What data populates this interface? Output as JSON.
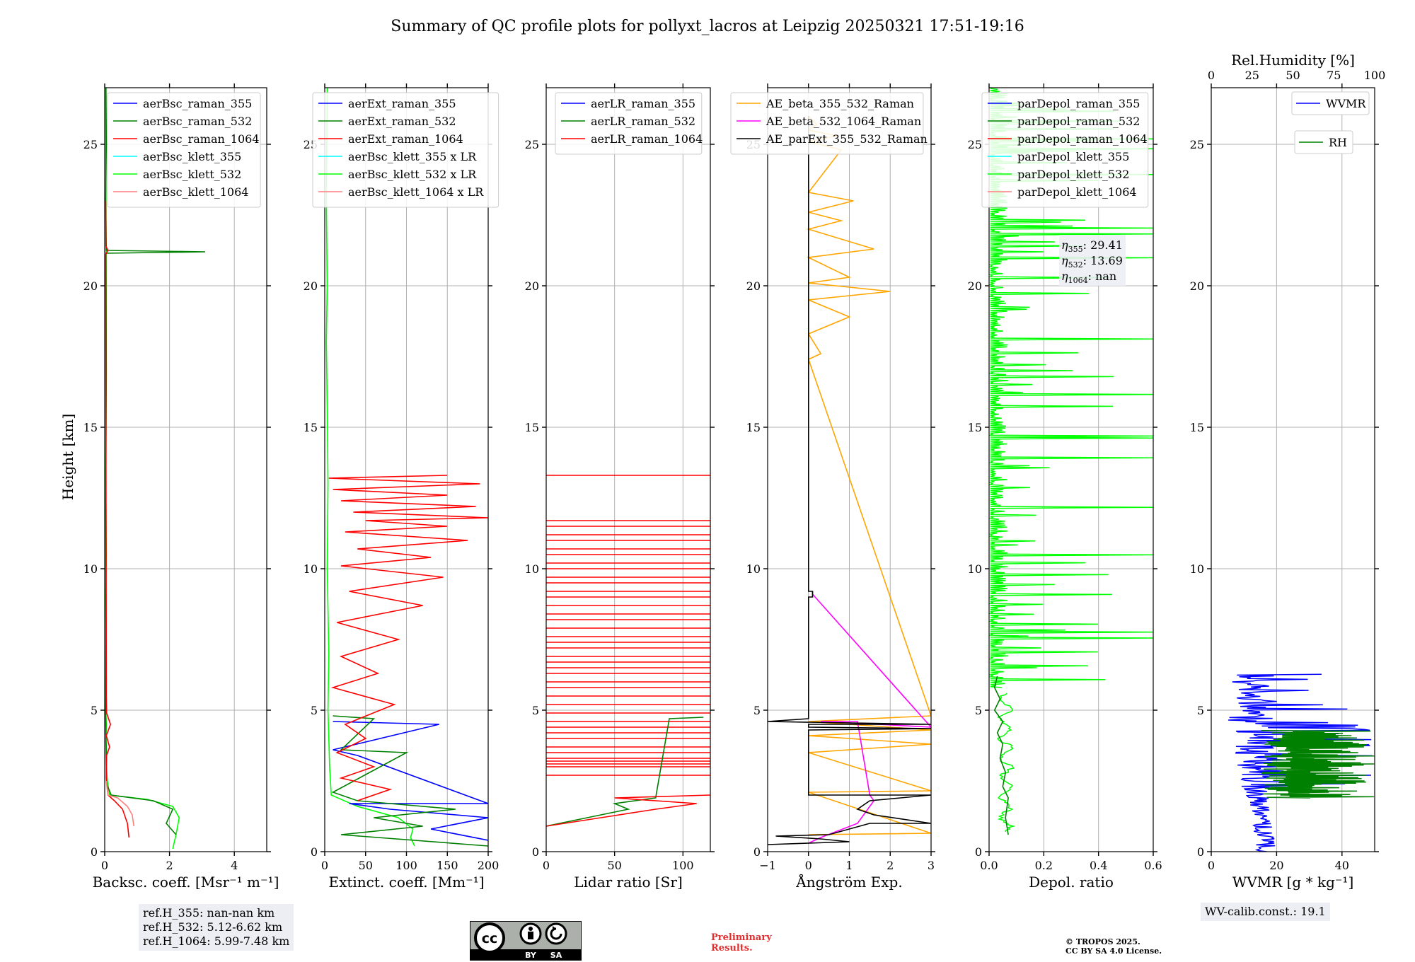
{
  "title": "Summary of QC profile plots for pollyxt_lacros at Leipzig 20250321 17:51-19:16",
  "y_axis": {
    "label": "Height [km]",
    "ticks": [
      0,
      5,
      10,
      15,
      20,
      25
    ],
    "range": [
      0,
      27
    ]
  },
  "colors": {
    "blue": "#0000ff",
    "green": "#008000",
    "red": "#ff0000",
    "cyan": "#00ffff",
    "lime": "#00ff00",
    "salmon": "#ff7f7f",
    "orange": "#ffa500",
    "magenta": "#ff00ff",
    "black": "#000000"
  },
  "chart_data": [
    {
      "type": "line",
      "id": "bsc",
      "xlabel": "Backsc. coeff. [Msr⁻¹ m⁻¹]",
      "xlim": [
        0,
        5
      ],
      "xticks": [
        0,
        2,
        4
      ],
      "legend": [
        "aerBsc_raman_355",
        "aerBsc_raman_532",
        "aerBsc_raman_1064",
        "aerBsc_klett_355",
        "aerBsc_klett_532",
        "aerBsc_klett_1064"
      ],
      "legend_colors": [
        "blue",
        "green",
        "red",
        "cyan",
        "lime",
        "salmon"
      ],
      "series": [
        {
          "name": "aerBsc_klett_532",
          "color": "lime",
          "x": [
            2.1,
            2.2,
            2.3,
            2.1,
            1.3,
            0.15,
            0.08,
            0.05,
            0.06,
            0.04,
            0.05,
            0.03,
            0.05,
            0.04,
            0.03,
            0.05,
            0.04,
            0.03,
            0.04,
            0.05,
            0.03
          ],
          "y": [
            0.1,
            0.6,
            1.2,
            1.6,
            1.85,
            2.0,
            2.5,
            3.0,
            3.5,
            4.0,
            4.5,
            5.0,
            6.0,
            7.5,
            9.0,
            10.5,
            12.0,
            13.5,
            15.0,
            18.0,
            27.0
          ]
        },
        {
          "name": "aerBsc_raman_532",
          "color": "green",
          "x": [
            2.2,
            1.9,
            2.1,
            1.5,
            0.2,
            0.06,
            0.05,
            0.04,
            0.03,
            0.04,
            0.03,
            0.05,
            0.04,
            3.1,
            0.05,
            0.03,
            0.05,
            0.04
          ],
          "y": [
            0.6,
            1.0,
            1.5,
            1.8,
            2.0,
            2.4,
            3.0,
            4.0,
            5.0,
            8.0,
            12.0,
            17.0,
            21.15,
            21.2,
            21.25,
            23.0,
            25.0,
            27.0
          ]
        },
        {
          "name": "aerBsc_raman_1064",
          "color": "red",
          "x": [
            0.75,
            0.7,
            0.55,
            0.3,
            0.1,
            0.05,
            0.06,
            0.15,
            0.05,
            0.18,
            0.06,
            0.05,
            0.03,
            0.1,
            0.04,
            0.03
          ],
          "y": [
            0.5,
            1.0,
            1.5,
            1.8,
            2.0,
            2.6,
            3.4,
            3.7,
            4.1,
            4.5,
            4.9,
            5.5,
            21.1,
            21.25,
            21.4,
            23.0
          ]
        },
        {
          "name": "aerBsc_klett_1064",
          "color": "salmon",
          "x": [
            0.9,
            0.85,
            0.7,
            0.4,
            0.1,
            0.05
          ],
          "y": [
            0.9,
            1.3,
            1.6,
            1.9,
            2.0,
            2.5
          ]
        }
      ],
      "annotations": [
        {
          "text": "ref.H_355: nan-nan km"
        },
        {
          "text": "ref.H_532: 5.12-6.62 km"
        },
        {
          "text": "ref.H_1064: 5.99-7.48 km"
        }
      ]
    },
    {
      "type": "line",
      "id": "ext",
      "xlabel": "Extinct. coeff. [Mm⁻¹]",
      "xlim": [
        0,
        200
      ],
      "xticks": [
        0,
        50,
        100,
        150,
        200
      ],
      "legend": [
        "aerExt_raman_355",
        "aerExt_raman_532",
        "aerExt_raman_1064",
        "aerBsc_klett_355 x LR",
        "aerBsc_klett_532 x LR",
        "aerBsc_klett_1064 x LR"
      ],
      "legend_colors": [
        "blue",
        "green",
        "red",
        "cyan",
        "lime",
        "salmon"
      ],
      "series": [
        {
          "name": "aerBsc_klett_532 x LR",
          "color": "lime",
          "x": [
            110,
            105,
            108,
            90,
            40,
            8,
            6,
            5,
            4,
            5,
            3,
            4,
            3,
            2,
            3,
            2,
            3
          ],
          "y": [
            0.2,
            0.5,
            0.8,
            1.2,
            1.6,
            2.0,
            3.0,
            4.0,
            5.0,
            7.0,
            10.0,
            13.0,
            15.8,
            18.0,
            20.0,
            23.0,
            27.0
          ]
        },
        {
          "name": "aerExt_raman_355",
          "color": "blue",
          "x": [
            200,
            130,
            200,
            80,
            30,
            200,
            40,
            10,
            140,
            10
          ],
          "y": [
            0.4,
            0.8,
            1.2,
            1.5,
            1.7,
            1.7,
            3.4,
            3.6,
            4.5,
            4.6
          ]
        },
        {
          "name": "aerExt_raman_532",
          "color": "green",
          "x": [
            200,
            20,
            120,
            60,
            160,
            40,
            10,
            100,
            20,
            60,
            10
          ],
          "y": [
            0.2,
            0.6,
            0.9,
            1.2,
            1.5,
            1.8,
            2.1,
            3.5,
            3.6,
            4.7,
            4.8
          ]
        },
        {
          "name": "aerExt_raman_1064",
          "color": "red",
          "x": [
            40,
            80,
            20,
            60,
            15,
            50,
            25,
            85,
            10,
            65,
            20,
            90,
            15,
            120,
            30,
            145,
            20,
            130,
            40,
            175,
            25,
            150,
            50,
            200,
            35,
            185,
            20,
            150,
            10,
            190,
            5,
            150
          ],
          "y": [
            1.8,
            2.2,
            2.6,
            3.0,
            3.5,
            4.0,
            4.5,
            5.2,
            5.8,
            6.3,
            6.9,
            7.5,
            8.1,
            8.7,
            9.2,
            9.7,
            10.1,
            10.4,
            10.7,
            11.0,
            11.3,
            11.5,
            11.7,
            11.8,
            12.0,
            12.2,
            12.4,
            12.6,
            12.8,
            13.0,
            13.2,
            13.3
          ]
        }
      ]
    },
    {
      "type": "line",
      "id": "lr",
      "xlabel": "Lidar ratio [Sr]",
      "xlim": [
        0,
        120
      ],
      "xticks": [
        0,
        50,
        100
      ],
      "legend": [
        "aerLR_raman_355",
        "aerLR_raman_532",
        "aerLR_raman_1064"
      ],
      "legend_colors": [
        "blue",
        "green",
        "red"
      ],
      "series": [
        {
          "name": "aerLR_raman_532",
          "color": "green",
          "x": [
            0,
            30,
            60,
            50,
            80,
            90,
            115
          ],
          "y": [
            0.9,
            1.2,
            1.5,
            1.7,
            1.9,
            4.7,
            4.75
          ]
        },
        {
          "name": "aerLR_raman_1064",
          "color": "red",
          "x": [
            0,
            40,
            80,
            110,
            50,
            120
          ],
          "y": [
            0.9,
            1.2,
            1.5,
            1.7,
            1.9,
            2.0
          ]
        }
      ],
      "hlines": {
        "color": "red",
        "y": [
          2.7,
          3.0,
          3.1,
          3.2,
          3.3,
          3.5,
          3.7,
          4.0,
          4.2,
          4.4,
          4.6,
          4.9,
          5.2,
          5.5,
          5.8,
          6.0,
          6.3,
          6.5,
          6.7,
          6.9,
          7.2,
          7.4,
          7.6,
          7.9,
          8.2,
          8.4,
          8.7,
          9.0,
          9.2,
          9.5,
          9.7,
          10.0,
          10.2,
          10.5,
          10.7,
          11.0,
          11.2,
          11.5,
          11.7,
          13.3
        ]
      }
    },
    {
      "type": "line",
      "id": "ae",
      "xlabel": "Ångström Exp.",
      "xlim": [
        -1,
        3
      ],
      "xticks": [
        -1,
        0,
        1,
        2,
        3
      ],
      "xticklabels": [
        "−1",
        "0",
        "1",
        "2",
        "3"
      ],
      "legend": [
        "AE_beta_355_532_Raman",
        "AE_beta_532_1064_Raman",
        "AE_parExt_355_532_Raman"
      ],
      "legend_colors": [
        "orange",
        "magenta",
        "black"
      ],
      "series": [
        {
          "name": "AE_beta_355_532_Raman",
          "color": "orange",
          "x": [
            0,
            3,
            0,
            3,
            0,
            3,
            0,
            3,
            0,
            3,
            0,
            0.3,
            0,
            1.0,
            0,
            2.0,
            0,
            1.0,
            0,
            1.6,
            0,
            0.8,
            0,
            1.1,
            0,
            0.8,
            0,
            0.7,
            0,
            0.2,
            0
          ],
          "y": [
            0.6,
            0.65,
            2.1,
            2.15,
            3.5,
            3.8,
            4.1,
            4.3,
            4.6,
            4.8,
            17.4,
            17.6,
            18.3,
            18.9,
            19.5,
            19.8,
            20.1,
            20.3,
            21.0,
            21.3,
            22.0,
            22.3,
            22.6,
            23.0,
            23.3,
            24.8,
            25.1,
            25.3,
            25.5,
            25.7,
            26.0
          ]
        },
        {
          "name": "AE_beta_532_1064_Raman",
          "color": "magenta",
          "x": [
            0,
            0.3,
            1.2,
            1.6,
            1.5,
            1.2,
            0.3,
            1.7,
            3.0,
            0.1,
            0.1
          ],
          "y": [
            0.3,
            0.5,
            1.0,
            1.8,
            2.0,
            4.6,
            4.6,
            4.5,
            4.4,
            9.1,
            9.2
          ]
        },
        {
          "name": "AE_parExt_355_532_Raman",
          "color": "black",
          "x": [
            -1,
            1.0,
            0.3,
            -0.8,
            0.5,
            1.5,
            3.0,
            1.6,
            1.2,
            1.5,
            3.0,
            0,
            0,
            3.0,
            0,
            0,
            3.0,
            -1,
            0,
            0,
            0.1,
            0.1,
            0,
            0,
            0
          ],
          "y": [
            0.25,
            0.35,
            0.45,
            0.55,
            0.6,
            1.0,
            1.0,
            1.3,
            1.5,
            1.8,
            2.0,
            2.0,
            4.3,
            4.35,
            4.4,
            4.5,
            4.5,
            4.6,
            4.7,
            9.0,
            9.0,
            9.2,
            9.2,
            25.0,
            26.0
          ]
        }
      ]
    },
    {
      "type": "line",
      "id": "depol",
      "xlabel": "Depol. ratio",
      "xlim": [
        0,
        0.6
      ],
      "xticks": [
        0,
        0.2,
        0.4,
        0.6
      ],
      "xticklabels": [
        "0.0",
        "0.2",
        "0.4",
        "0.6"
      ],
      "legend": [
        "parDepol_raman_355",
        "parDepol_raman_532",
        "parDepol_raman_1064",
        "parDepol_klett_355",
        "parDepol_klett_532",
        "parDepol_klett_1064"
      ],
      "legend_colors": [
        "blue",
        "green",
        "red",
        "cyan",
        "lime",
        "salmon"
      ],
      "series": [
        {
          "name": "parDepol_raman_532",
          "color": "green",
          "x": [
            0.07,
            0.06,
            0.07,
            0.05,
            0.06,
            0.04,
            0.05,
            0.03,
            0.05,
            0.02,
            0.04,
            0.02,
            0.03
          ],
          "y": [
            0.6,
            1.2,
            1.9,
            2.3,
            2.8,
            3.3,
            3.8,
            4.2,
            4.6,
            5.0,
            5.4,
            5.8,
            6.2
          ]
        }
      ],
      "annotations": [
        {
          "text": "η355: 29.41",
          "sym": "η",
          "sub": "355",
          "val": ": 29.41"
        },
        {
          "text": "η532: 13.69",
          "sym": "η",
          "sub": "532",
          "val": ": 13.69"
        },
        {
          "text": "η1064: nan",
          "sym": "η",
          "sub": "1064",
          "val": ": nan"
        }
      ]
    },
    {
      "type": "line",
      "id": "wv",
      "xlabel": "WVMR [g * kg⁻¹]",
      "xlim": [
        0,
        50
      ],
      "xticks": [
        0,
        20,
        40
      ],
      "top_axis": {
        "label": "Rel.Humidity [%]",
        "range": [
          0,
          100
        ],
        "ticks": [
          0,
          25,
          50,
          75,
          100
        ]
      },
      "legend": [
        "WVMR",
        "RH"
      ],
      "legend_colors": [
        "blue",
        "green"
      ],
      "series": [
        {
          "name": "WVMR",
          "color": "blue"
        },
        {
          "name": "RH",
          "color": "green"
        }
      ],
      "annotations": [
        {
          "text": "WV-calib.const.: 19.1"
        }
      ]
    }
  ],
  "footer": {
    "preliminary_line1": "Preliminary",
    "preliminary_line2": "Results.",
    "copyright_line1": "© TROPOS 2025.",
    "copyright_line2": "CC BY SA 4.0 License.",
    "license_badge_labels": [
      "BY",
      "SA"
    ]
  }
}
